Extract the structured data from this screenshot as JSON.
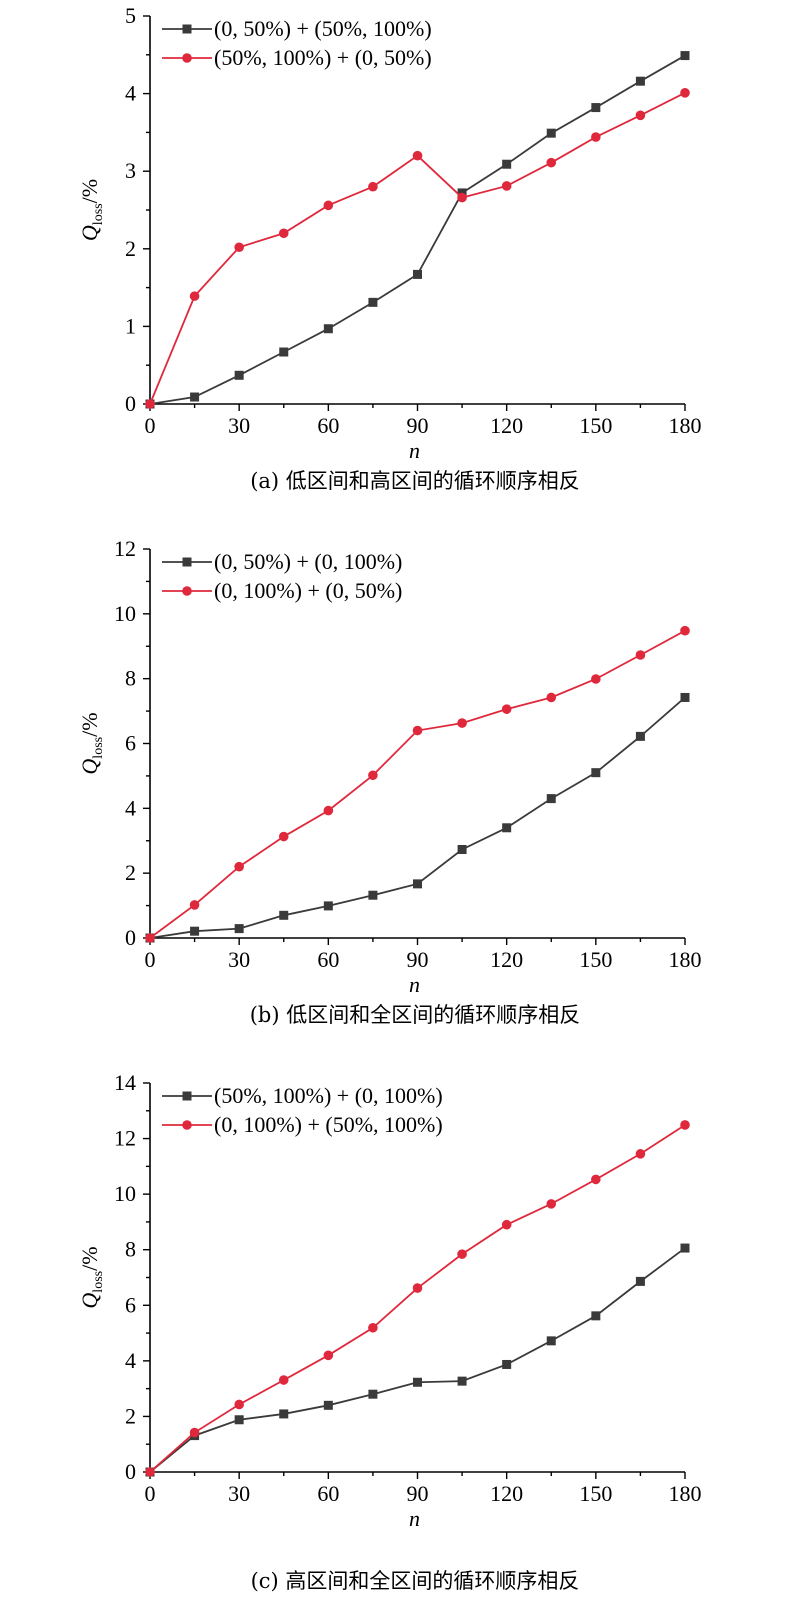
{
  "chart_data": [
    {
      "type": "line",
      "caption": "(a) 低区间和高区间的循环顺序相反",
      "xlabel": "n",
      "ylabel": "Q_loss/%",
      "ylabel_main": "Q",
      "ylabel_sub": "loss",
      "ylabel_unit": "/%",
      "xlim": [
        0,
        180
      ],
      "ylim": [
        0,
        5
      ],
      "xticks": [
        0,
        30,
        60,
        90,
        120,
        150,
        180
      ],
      "yticks": [
        0,
        1,
        2,
        3,
        4,
        5
      ],
      "x": [
        0,
        15,
        30,
        45,
        60,
        75,
        90,
        105,
        120,
        135,
        150,
        165,
        180
      ],
      "legend_position": "top-left",
      "series": [
        {
          "name": "(0, 50%) + (50%, 100%)",
          "color": "#3a3a3a",
          "marker": "square",
          "values": [
            0,
            0.09,
            0.37,
            0.67,
            0.97,
            1.31,
            1.67,
            2.72,
            3.09,
            3.49,
            3.82,
            4.16,
            4.49
          ]
        },
        {
          "name": "(50%, 100%) + (0, 50%)",
          "color": "#e0283c",
          "marker": "circle",
          "values": [
            0,
            1.39,
            2.02,
            2.2,
            2.56,
            2.8,
            3.2,
            2.66,
            2.81,
            3.11,
            3.44,
            3.72,
            4.01
          ]
        }
      ]
    },
    {
      "type": "line",
      "caption": "(b) 低区间和全区间的循环顺序相反",
      "xlabel": "n",
      "ylabel": "Q_loss/%",
      "ylabel_main": "Q",
      "ylabel_sub": "loss",
      "ylabel_unit": "/%",
      "xlim": [
        0,
        180
      ],
      "ylim": [
        0,
        12
      ],
      "xticks": [
        0,
        30,
        60,
        90,
        120,
        150,
        180
      ],
      "yticks": [
        0,
        2,
        4,
        6,
        8,
        10,
        12
      ],
      "x": [
        0,
        15,
        30,
        45,
        60,
        75,
        90,
        105,
        120,
        135,
        150,
        165,
        180
      ],
      "legend_position": "top-left",
      "series": [
        {
          "name": "(0, 50%) + (0, 100%)",
          "color": "#3a3a3a",
          "marker": "square",
          "values": [
            0,
            0.21,
            0.29,
            0.7,
            0.99,
            1.32,
            1.67,
            2.73,
            3.4,
            4.3,
            5.1,
            6.22,
            7.42
          ]
        },
        {
          "name": "(0, 100%) + (0, 50%)",
          "color": "#e0283c",
          "marker": "circle",
          "values": [
            0,
            1.02,
            2.2,
            3.13,
            3.93,
            5.02,
            6.4,
            6.63,
            7.06,
            7.42,
            7.99,
            8.73,
            9.48
          ]
        }
      ]
    },
    {
      "type": "line",
      "caption": "(c) 高区间和全区间的循环顺序相反",
      "xlabel": "n",
      "ylabel": "Q_loss/%",
      "ylabel_main": "Q",
      "ylabel_sub": "loss",
      "ylabel_unit": "/%",
      "xlim": [
        0,
        180
      ],
      "ylim": [
        0,
        14
      ],
      "xticks": [
        0,
        30,
        60,
        90,
        120,
        150,
        180
      ],
      "yticks": [
        0,
        2,
        4,
        6,
        8,
        10,
        12,
        14
      ],
      "x": [
        0,
        15,
        30,
        45,
        60,
        75,
        90,
        105,
        120,
        135,
        150,
        165,
        180
      ],
      "legend_position": "top-left",
      "series": [
        {
          "name": "(50%, 100%) + (0, 100%)",
          "color": "#3a3a3a",
          "marker": "square",
          "values": [
            0,
            1.31,
            1.88,
            2.09,
            2.4,
            2.8,
            3.23,
            3.27,
            3.87,
            4.72,
            5.62,
            6.86,
            8.06
          ]
        },
        {
          "name": "(0, 100%) + (50%, 100%)",
          "color": "#e0283c",
          "marker": "circle",
          "values": [
            0,
            1.42,
            2.43,
            3.31,
            4.2,
            5.19,
            6.62,
            7.84,
            8.9,
            9.65,
            10.53,
            11.45,
            12.49
          ]
        }
      ]
    }
  ]
}
